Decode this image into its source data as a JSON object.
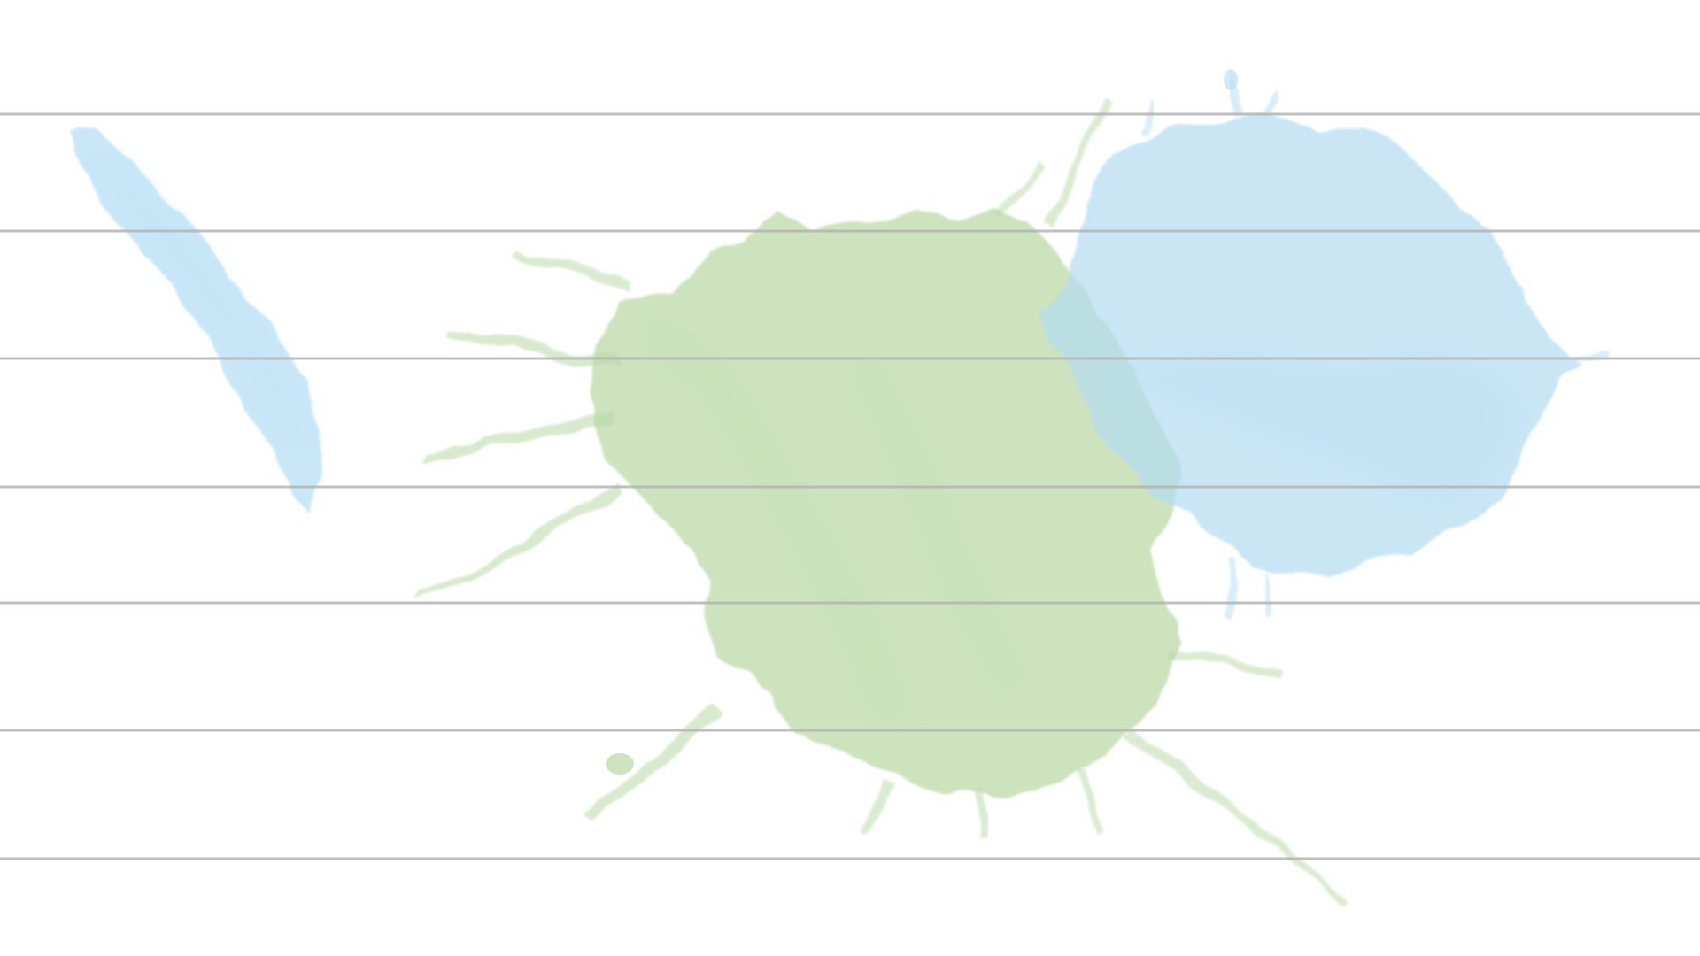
{
  "scene": {
    "background_color": "#ffffff",
    "ruled_line_color": "#b4b4b4",
    "ruled_line_count": 7,
    "paint_splashes": [
      {
        "name": "blue-brush-stroke",
        "color": "#b9e0f5"
      },
      {
        "name": "green-splash",
        "color": "#b9d9a6"
      },
      {
        "name": "blue-splash",
        "color": "#b4dcf2"
      }
    ]
  }
}
